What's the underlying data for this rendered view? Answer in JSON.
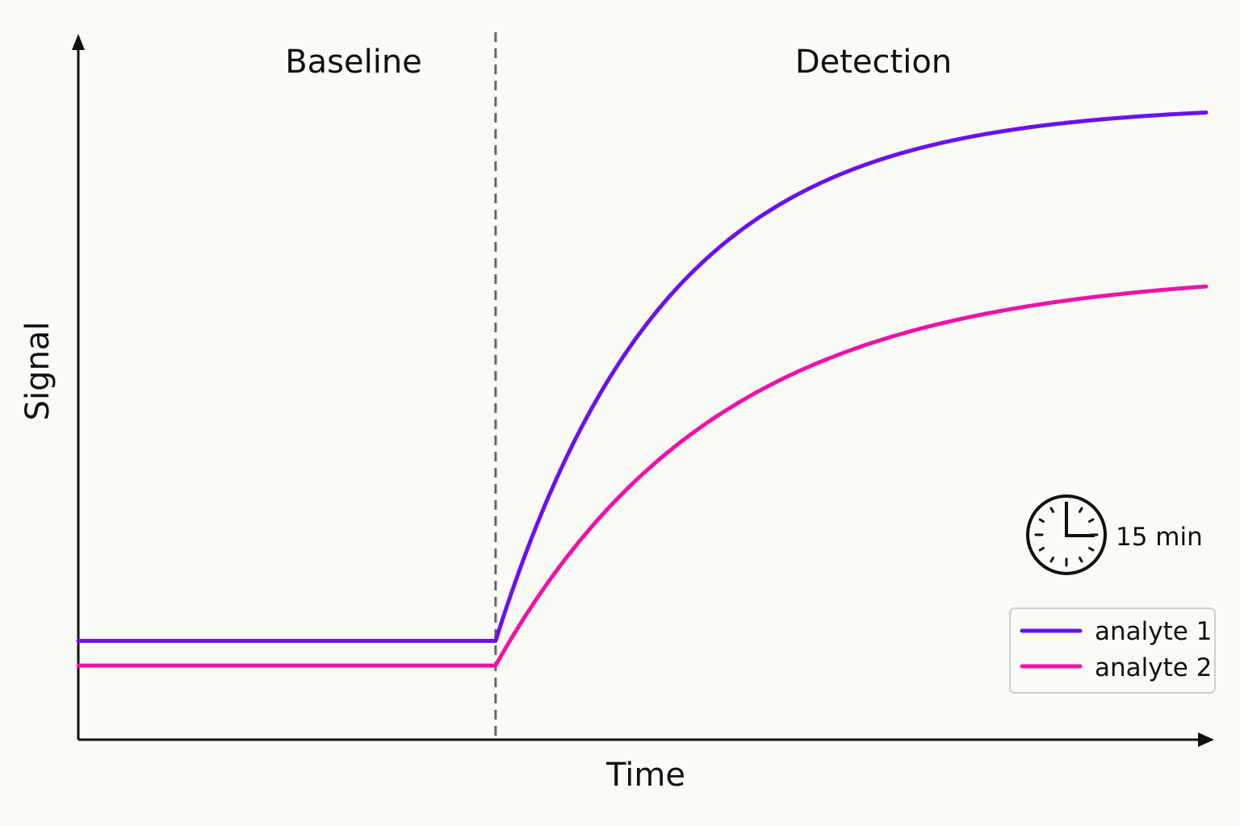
{
  "chart_data": {
    "type": "line",
    "xlabel": "Time",
    "ylabel": "Signal",
    "phases": [
      {
        "label": "Baseline"
      },
      {
        "label": "Detection"
      }
    ],
    "timer": {
      "icon": "clock-icon",
      "label": "15 min"
    },
    "series": [
      {
        "name": "analyte 1",
        "color": "#6a12ee",
        "baseline": 0.14,
        "plateau": 0.9,
        "rate": 4.2
      },
      {
        "name": "analyte 2",
        "color": "#f012a8",
        "baseline": 0.105,
        "plateau": 0.665,
        "rate": 3.2
      }
    ],
    "x_range": [
      0,
      1
    ],
    "y_range": [
      0,
      1
    ],
    "phase_boundary_x": 0.37,
    "grid": false,
    "legend_position": "bottom-right",
    "axis_color": "#111111",
    "divider_color": "#666666"
  }
}
